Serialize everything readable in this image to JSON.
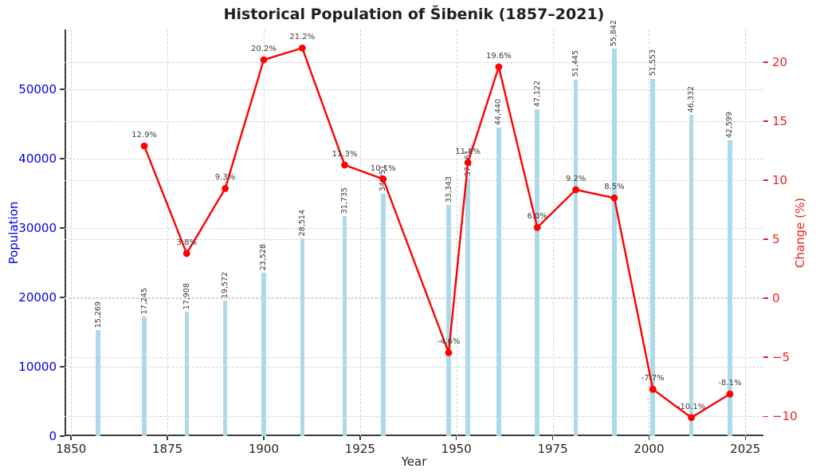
{
  "title": "Historical Population of Šibenik (1857–2021)",
  "axes": {
    "x_label": "Year",
    "y_left_label": "Population",
    "y_right_label": "Change (%)"
  },
  "colors": {
    "bar": "#add9e8",
    "line": "#ff0000",
    "marker": "#ff0000",
    "axis_left": "#0000ee",
    "axis_right": "#f02020",
    "data_label": "#3a3a3a",
    "grid": "#d2d2d2",
    "spine": "#3c3c3c",
    "title": "#1f1f1f"
  },
  "chart_data": {
    "type": "combo-bar-line",
    "title": "Historical Population of Šibenik (1857–2021)",
    "xlabel": "Year",
    "ylabel_left": "Population",
    "ylabel_right": "Change (%)",
    "grid": true,
    "legend": false,
    "xlim": [
      1848.3,
      2029.7
    ],
    "ylim_left": [
      0,
      58634
    ],
    "ylim_right": [
      -11.67,
      22.77
    ],
    "xticks": [
      1850,
      1875,
      1900,
      1925,
      1950,
      1975,
      2000,
      2025
    ],
    "yticks_left": [
      0,
      10000,
      20000,
      30000,
      40000,
      50000
    ],
    "yticks_right": [
      -10,
      -5,
      0,
      5,
      10,
      15,
      20
    ],
    "series": [
      {
        "name": "Population",
        "type": "bar",
        "x": [
          1857,
          1869,
          1880,
          1890,
          1900,
          1910,
          1921,
          1931,
          1948,
          1953,
          1961,
          1971,
          1981,
          1991,
          2001,
          2011,
          2021
        ],
        "values": [
          15269,
          17245,
          17908,
          19572,
          23528,
          28514,
          31735,
          34951,
          33343,
          37161,
          44440,
          47122,
          51445,
          55842,
          51553,
          46332,
          42599
        ],
        "labels": [
          "15,269",
          "17,245",
          "17,908",
          "19,572",
          "23,528",
          "28,514",
          "31,735",
          "34,951",
          "33,343",
          "37,161",
          "44,440",
          "47,122",
          "51,445",
          "55,842",
          "51,553",
          "46,332",
          "42,599"
        ]
      },
      {
        "name": "Change (%)",
        "type": "line",
        "x": [
          1869,
          1880,
          1890,
          1900,
          1910,
          1921,
          1931,
          1948,
          1953,
          1961,
          1971,
          1981,
          1991,
          2001,
          2011,
          2021
        ],
        "values": [
          12.9,
          3.8,
          9.3,
          20.2,
          21.2,
          11.3,
          10.1,
          -4.6,
          11.5,
          19.6,
          6.0,
          9.2,
          8.5,
          -7.7,
          -10.1,
          -8.1
        ],
        "labels": [
          "12.9%",
          "3.8%",
          "9.3%",
          "20.2%",
          "21.2%",
          "11.3%",
          "10.1%",
          "-4.6%",
          "11.5%",
          "19.6%",
          "6.0%",
          "9.2%",
          "8.5%",
          "-7.7%",
          "-10.1%",
          "-8.1%"
        ]
      }
    ]
  }
}
